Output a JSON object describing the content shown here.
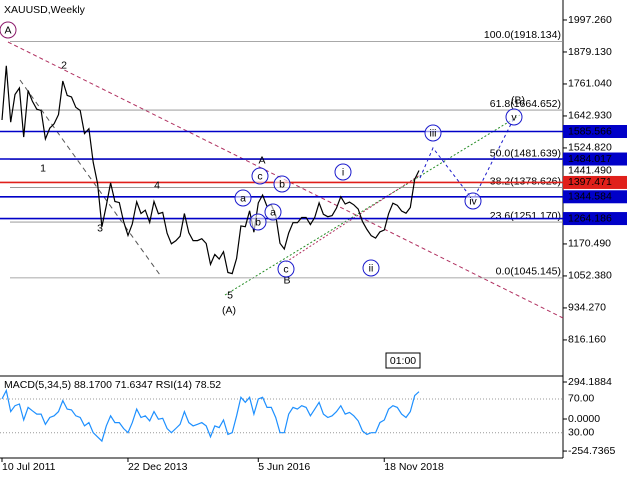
{
  "chart_data": [
    {
      "type": "line",
      "title": "XAUUSD,Weekly",
      "color": "#000000",
      "categories": [
        "10 Jul 2011",
        null,
        null,
        null,
        null,
        null,
        null,
        null,
        null,
        null,
        null,
        null,
        null,
        null,
        null,
        null,
        null,
        null,
        null,
        null,
        null,
        null,
        null,
        null,
        null,
        null,
        null,
        null,
        null,
        "22 Dec 2013",
        null,
        null,
        null,
        null,
        null,
        null,
        null,
        null,
        null,
        null,
        null,
        null,
        null,
        null,
        null,
        null,
        null,
        null,
        null,
        null,
        null,
        null,
        null,
        null,
        null,
        null,
        null,
        null,
        null,
        "5 Jun 2016",
        null,
        null,
        null,
        null,
        null,
        null,
        null,
        null,
        null,
        null,
        null,
        null,
        null,
        null,
        null,
        null,
        null,
        null,
        null,
        null,
        null,
        null,
        null,
        null,
        null,
        null,
        null,
        null,
        "18 Nov 2018",
        null,
        null,
        null,
        null,
        null,
        null,
        null,
        null
      ],
      "values": [
        1628,
        1828,
        1620,
        1722,
        1746,
        1565,
        1737,
        1697,
        1668,
        1663,
        1558,
        1598,
        1614,
        1648,
        1772,
        1719,
        1713,
        1675,
        1663,
        1578,
        1596,
        1472,
        1393,
        1234,
        1312,
        1396,
        1327,
        1323,
        1253,
        1202,
        1244,
        1326,
        1283,
        1295,
        1250,
        1327,
        1282,
        1287,
        1210,
        1171,
        1182,
        1199,
        1283,
        1212,
        1183,
        1183,
        1190,
        1172,
        1095,
        1132,
        1115,
        1142,
        1065,
        1061,
        1117,
        1237,
        1234,
        1293,
        1214,
        1322,
        1351,
        1309,
        1315,
        1277,
        1173,
        1152,
        1211,
        1249,
        1249,
        1268,
        1268,
        1242,
        1269,
        1322,
        1280,
        1271,
        1275,
        1303,
        1345,
        1318,
        1325,
        1315,
        1299,
        1253,
        1224,
        1201,
        1192,
        1215,
        1222,
        1282,
        1321,
        1313,
        1292,
        1284,
        1305,
        1409,
        1441.49
      ],
      "ylim": [
        683,
        2071
      ],
      "yticks": [
        {
          "value": 1997.26,
          "label": "1997.260"
        },
        {
          "value": 1879.13,
          "label": "1879.130"
        },
        {
          "value": 1761.04,
          "label": "1761.040"
        },
        {
          "value": 1642.93,
          "label": "1642.930"
        },
        {
          "value": 1524.82,
          "label": "1524.820"
        },
        {
          "value": 1170.49,
          "label": "1170.490"
        },
        {
          "value": 1052.38,
          "label": "1052.380"
        },
        {
          "value": 934.27,
          "label": "934.270"
        },
        {
          "value": 816.16,
          "label": "816.160"
        }
      ],
      "levels": [
        {
          "value": 1585.566,
          "color": "#0000c8"
        },
        {
          "value": 1484.017,
          "color": "#0000c8"
        },
        {
          "value": 1397.471,
          "color": "#e0201b"
        },
        {
          "value": 1344.584,
          "color": "#0000c8"
        },
        {
          "value": 1264.186,
          "color": "#0000c8"
        }
      ],
      "fib_levels": [
        {
          "value": 1918.134,
          "label": "100.0(1918.134)"
        },
        {
          "value": 1664.652,
          "label": "61.8(1664.652)"
        },
        {
          "value": 1481.639,
          "label": "50.0(1481.639)"
        },
        {
          "value": 1378.626,
          "label": "38.2(1378.626)"
        },
        {
          "value": 1251.17,
          "label": "23.6(1251.170)"
        },
        {
          "value": 1045.145,
          "label": "0.0(1045.145)"
        }
      ],
      "fib_color": "#8c8c8c",
      "current_price": {
        "value": 1441.49,
        "label": "1441.490"
      },
      "timer": "01:00",
      "wave_labels": [
        {
          "text": "A",
          "color": "#8b1a6b",
          "circled": true
        },
        {
          "text": "2",
          "color": "#a52a2a",
          "circled": false
        },
        {
          "text": "1",
          "color": "#a52a2a",
          "circled": false
        },
        {
          "text": "3",
          "color": "#a52a2a",
          "circled": false
        },
        {
          "text": "4",
          "color": "#a52a2a",
          "circled": false
        },
        {
          "text": "5",
          "color": "#a52a2a",
          "circled": false
        },
        {
          "text": "(A)",
          "color": "#228b22",
          "circled": false
        },
        {
          "text": "A",
          "color": "#a52a2a",
          "circled": false
        },
        {
          "text": "B",
          "color": "#a52a2a",
          "circled": false
        },
        {
          "text": "c",
          "color": "#1a1acc",
          "circled": true
        },
        {
          "text": "b",
          "color": "#1a1acc",
          "circled": true
        },
        {
          "text": "a",
          "color": "#1a1acc",
          "circled": true
        },
        {
          "text": "b",
          "color": "#1a1acc",
          "circled": true
        },
        {
          "text": "a",
          "color": "#1a1acc",
          "circled": true
        },
        {
          "text": "c",
          "color": "#1a1acc",
          "circled": true
        },
        {
          "text": "i",
          "color": "#1a1acc",
          "circled": true
        },
        {
          "text": "ii",
          "color": "#1a1acc",
          "circled": true
        },
        {
          "text": "iii",
          "color": "#1a1acc",
          "circled": true
        },
        {
          "text": "iv",
          "color": "#1a1acc",
          "circled": true
        },
        {
          "text": "v",
          "color": "#1a1acc",
          "circled": true
        },
        {
          "text": "(B)",
          "color": "#228b22",
          "circled": false
        }
      ]
    },
    {
      "type": "line",
      "title": "MACD(5,34,5) 88.1700 71.6347 RSI(14) 78.52",
      "ylim": [
        -310,
        334
      ],
      "yticks": [
        {
          "value": 294.1884,
          "label": "294.1884"
        },
        {
          "value": 0,
          "label": "0.0000"
        },
        {
          "value": -254.7365,
          "label": "-254.7365"
        }
      ],
      "y2lim": [
        0,
        96
      ],
      "y2ticks": [
        {
          "value": 70,
          "label": "70.00"
        },
        {
          "value": 30,
          "label": "30.00"
        }
      ],
      "series": [
        {
          "color": "#1e90ff",
          "axis": "y2",
          "values": [
            70,
            80,
            55,
            62,
            64,
            45,
            60,
            56,
            52,
            52,
            40,
            48,
            50,
            55,
            68,
            58,
            57,
            50,
            48,
            38,
            42,
            30,
            25,
            20,
            38,
            50,
            42,
            42,
            35,
            30,
            42,
            58,
            48,
            50,
            44,
            55,
            46,
            47,
            35,
            30,
            35,
            40,
            55,
            42,
            38,
            40,
            42,
            38,
            25,
            38,
            36,
            45,
            28,
            30,
            50,
            72,
            66,
            72,
            52,
            70,
            72,
            60,
            60,
            48,
            30,
            30,
            52,
            60,
            58,
            62,
            60,
            50,
            58,
            66,
            52,
            48,
            50,
            55,
            62,
            52,
            54,
            50,
            44,
            32,
            28,
            30,
            30,
            42,
            45,
            58,
            62,
            60,
            52,
            48,
            55,
            74,
            78.52
          ]
        }
      ]
    }
  ]
}
